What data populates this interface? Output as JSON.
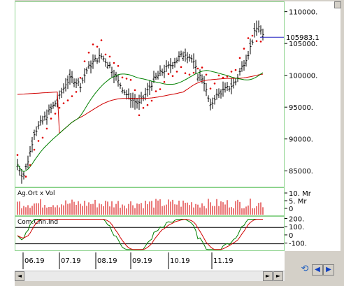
{
  "chart_data": [
    {
      "type": "line",
      "panel": "price",
      "series": [
        {
          "color": "#000000",
          "style": "ohlc-bars"
        },
        {
          "color": "#e00000",
          "style": "parabolic-sar-dots"
        },
        {
          "color": "#d00000",
          "style": "line"
        },
        {
          "color": "#008000",
          "style": "line"
        }
      ],
      "yticks": [
        "110000.",
        "105000.",
        "100000.",
        "95000.",
        "90000.",
        "85000."
      ],
      "ytick_values": [
        110000,
        105000,
        100000,
        95000,
        90000,
        85000
      ],
      "ylim": [
        82500,
        111500
      ],
      "last_price_label": "105983.1",
      "last_price": 105983.1
    },
    {
      "type": "bar",
      "panel": "volume",
      "title": "Ag.Ort x Vol",
      "color": "#e04040",
      "yticks": [
        "10. Mr",
        "5. Mr",
        "0"
      ]
    },
    {
      "type": "line",
      "panel": "oscillator",
      "title": "Com.Chn.Ind",
      "series": [
        {
          "color": "#008000",
          "style": "line"
        },
        {
          "color": "#d00000",
          "style": "line"
        }
      ],
      "yticks": [
        "200.",
        "100.",
        "0",
        "-100."
      ],
      "ytick_values": [
        200,
        100,
        0,
        -100
      ],
      "ylim": [
        -180,
        230
      ]
    }
  ],
  "date_labels": [
    "06.19",
    "07.19",
    "08.19",
    "09.19",
    "10.19",
    "11.19"
  ],
  "scrollbar": {
    "left_arrow": "◄",
    "right_arrow": "►"
  },
  "nav": {
    "refresh_icon": "refresh-icon",
    "prev": "◀",
    "next": "▶"
  },
  "colors": {
    "panel_border": "#8fd48f",
    "last_price_line": "#2020c0"
  }
}
